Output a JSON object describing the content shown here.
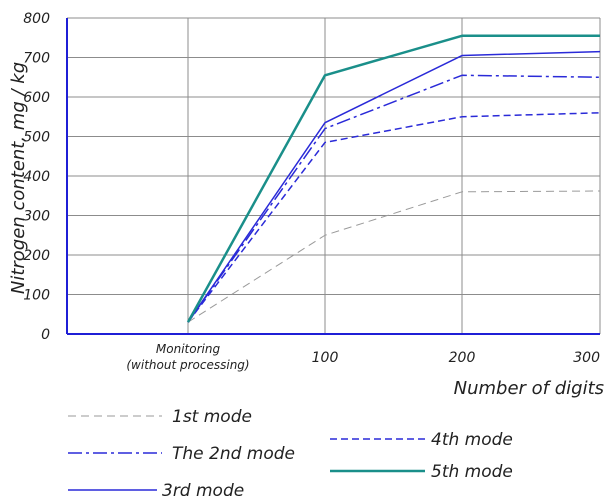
{
  "chart_data": {
    "type": "line",
    "xlabel": "Number of digits",
    "ylabel": "Nitrogen content, mg / kg",
    "ylim": [
      0,
      800
    ],
    "yticks": [
      0,
      100,
      200,
      300,
      400,
      500,
      600,
      700,
      800
    ],
    "categories": [
      {
        "line1": "Monitoring",
        "line2": "(without processing)"
      },
      {
        "line1": "100",
        "line2": ""
      },
      {
        "line1": "200",
        "line2": ""
      },
      {
        "line1": "300",
        "line2": ""
      }
    ],
    "grid": true,
    "series": [
      {
        "name": "1st mode",
        "color": "#9a9a9a",
        "dash": "dashed-gray",
        "values": [
          30,
          250,
          360,
          362
        ]
      },
      {
        "name": "The 2nd mode",
        "color": "#2a2ad8",
        "dash": "dash-dot",
        "values": [
          30,
          520,
          655,
          650
        ]
      },
      {
        "name": "3rd mode",
        "color": "#2a2ad8",
        "dash": "solid",
        "values": [
          30,
          535,
          705,
          715
        ]
      },
      {
        "name": "4th mode",
        "color": "#2a2ad8",
        "dash": "dashed",
        "values": [
          30,
          485,
          550,
          560
        ]
      },
      {
        "name": "5th mode",
        "color": "#1a8f8a",
        "dash": "solid-thick",
        "values": [
          30,
          655,
          755,
          755
        ]
      }
    ]
  }
}
